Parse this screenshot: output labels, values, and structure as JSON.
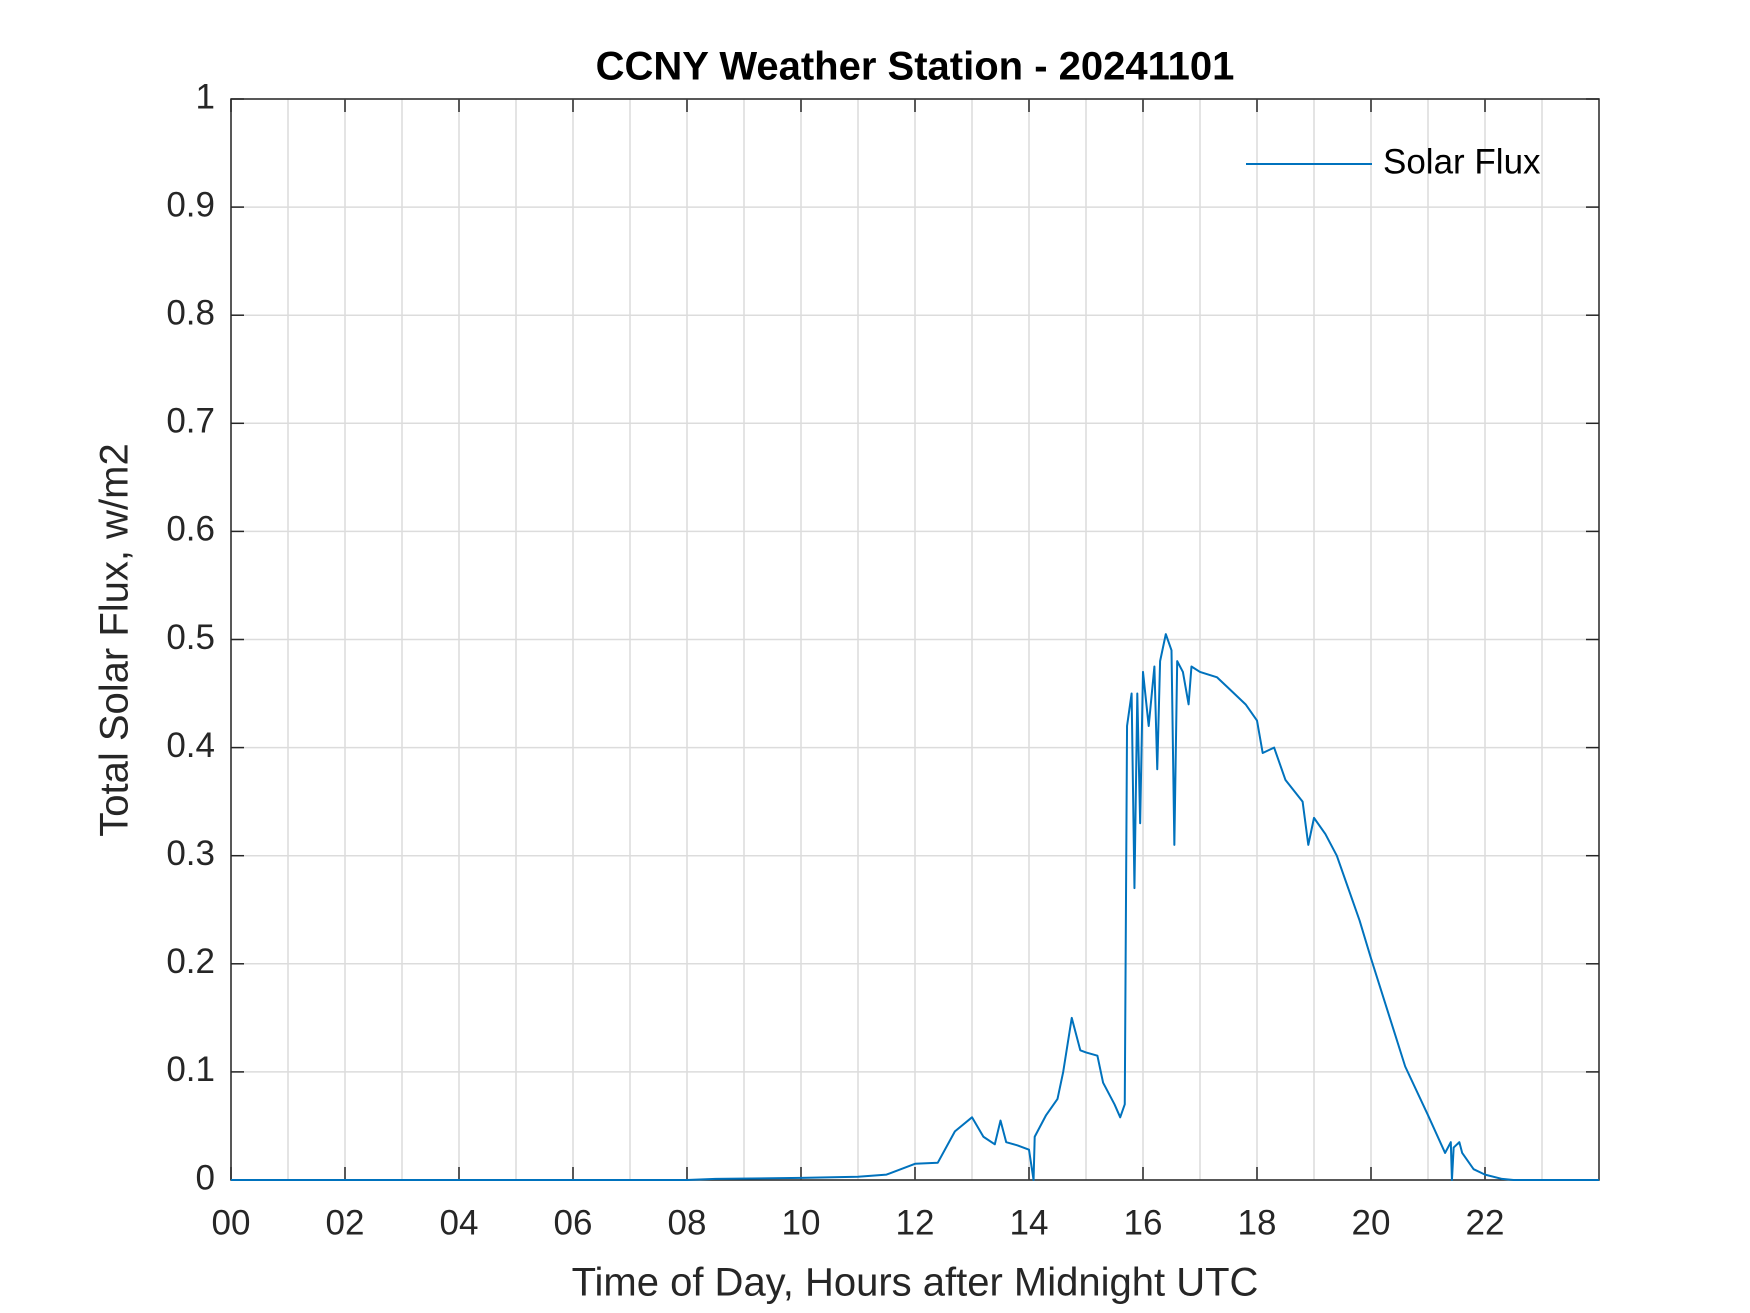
{
  "chart_data": {
    "type": "line",
    "title": "CCNY Weather Station - 20241101",
    "x_label": "Time of Day, Hours after Midnight UTC",
    "y_label": "Total Solar Flux, w/m2",
    "xlim": [
      0,
      24
    ],
    "ylim": [
      0,
      1
    ],
    "xticks": [
      {
        "value": 0,
        "label": "00"
      },
      {
        "value": 2,
        "label": "02"
      },
      {
        "value": 4,
        "label": "04"
      },
      {
        "value": 6,
        "label": "06"
      },
      {
        "value": 8,
        "label": "08"
      },
      10,
      12,
      14,
      16,
      18,
      20,
      22
    ],
    "yticks": [
      0,
      0.1,
      0.2,
      0.3,
      0.4,
      0.5,
      0.6,
      0.7,
      0.8,
      0.9,
      1
    ],
    "grid": true,
    "legend": "upper-right",
    "series": [
      {
        "name": "Solar Flux",
        "color": "#0072bd",
        "x": [
          0,
          8,
          8.5,
          10,
          11,
          11.5,
          12,
          12.4,
          12.7,
          13.0,
          13.2,
          13.4,
          13.5,
          13.6,
          13.8,
          14.0,
          14.08,
          14.1,
          14.3,
          14.5,
          14.6,
          14.75,
          14.9,
          15.0,
          15.2,
          15.3,
          15.5,
          15.6,
          15.68,
          15.72,
          15.8,
          15.85,
          15.9,
          15.95,
          16.0,
          16.1,
          16.2,
          16.25,
          16.3,
          16.4,
          16.5,
          16.55,
          16.6,
          16.7,
          16.8,
          16.85,
          17.0,
          17.3,
          17.5,
          17.8,
          18.0,
          18.1,
          18.3,
          18.5,
          18.8,
          18.9,
          19.0,
          19.2,
          19.4,
          19.6,
          19.8,
          20.0,
          20.3,
          20.6,
          21.0,
          21.3,
          21.4,
          21.42,
          21.45,
          21.55,
          21.6,
          21.8,
          22.0,
          22.3,
          22.5,
          24
        ],
        "values": [
          0,
          0,
          0.001,
          0.002,
          0.003,
          0.005,
          0.015,
          0.016,
          0.045,
          0.058,
          0.04,
          0.033,
          0.055,
          0.035,
          0.032,
          0.028,
          0,
          0.04,
          0.06,
          0.075,
          0.1,
          0.15,
          0.12,
          0.118,
          0.115,
          0.09,
          0.07,
          0.058,
          0.07,
          0.42,
          0.45,
          0.27,
          0.45,
          0.33,
          0.47,
          0.42,
          0.475,
          0.38,
          0.48,
          0.505,
          0.49,
          0.31,
          0.48,
          0.47,
          0.44,
          0.475,
          0.47,
          0.465,
          0.455,
          0.44,
          0.425,
          0.395,
          0.4,
          0.37,
          0.35,
          0.31,
          0.335,
          0.32,
          0.3,
          0.27,
          0.24,
          0.205,
          0.155,
          0.105,
          0.06,
          0.025,
          0.035,
          0,
          0.03,
          0.035,
          0.025,
          0.01,
          0.005,
          0.001,
          0,
          0
        ]
      }
    ]
  }
}
